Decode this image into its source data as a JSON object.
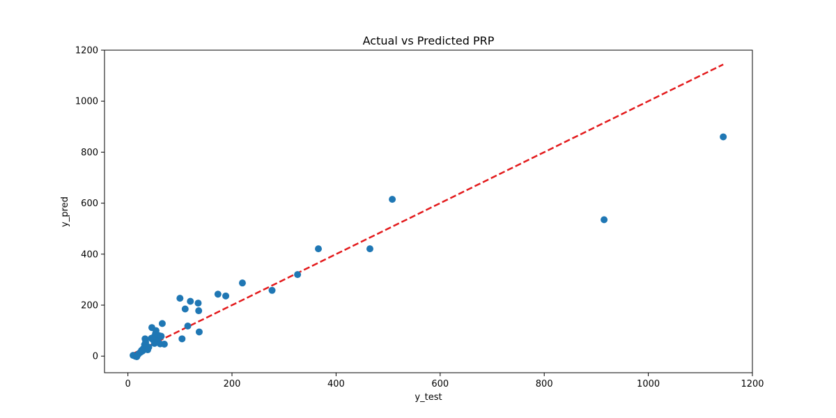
{
  "chart_data": {
    "type": "scatter",
    "title": "Actual vs Predicted PRP",
    "xlabel": "y_test",
    "ylabel": "y_pred",
    "xlim": [
      -45,
      1200
    ],
    "ylim": [
      -65,
      1200
    ],
    "xticks": [
      0,
      200,
      400,
      600,
      800,
      1000,
      1200
    ],
    "yticks": [
      0,
      200,
      400,
      600,
      800,
      1000,
      1200
    ],
    "grid": false,
    "series": [
      {
        "color": "#1f77b4",
        "points": [
          [
            10,
            3
          ],
          [
            14,
            0
          ],
          [
            17,
            -2
          ],
          [
            20,
            8
          ],
          [
            24,
            15
          ],
          [
            26,
            22
          ],
          [
            28,
            20
          ],
          [
            29,
            28
          ],
          [
            31,
            32
          ],
          [
            32,
            45
          ],
          [
            33,
            68
          ],
          [
            34,
            55
          ],
          [
            36,
            40
          ],
          [
            38,
            25
          ],
          [
            40,
            35
          ],
          [
            45,
            70
          ],
          [
            46,
            112
          ],
          [
            48,
            65
          ],
          [
            50,
            75
          ],
          [
            51,
            50
          ],
          [
            53,
            88
          ],
          [
            54,
            100
          ],
          [
            55,
            72
          ],
          [
            57,
            60
          ],
          [
            58,
            55
          ],
          [
            60,
            80
          ],
          [
            62,
            48
          ],
          [
            64,
            78
          ],
          [
            66,
            128
          ],
          [
            70,
            47
          ],
          [
            100,
            227
          ],
          [
            104,
            68
          ],
          [
            110,
            185
          ],
          [
            115,
            118
          ],
          [
            120,
            215
          ],
          [
            135,
            208
          ],
          [
            136,
            178
          ],
          [
            137,
            95
          ],
          [
            173,
            243
          ],
          [
            188,
            236
          ],
          [
            220,
            287
          ],
          [
            277,
            258
          ],
          [
            326,
            320
          ],
          [
            366,
            421
          ],
          [
            465,
            421
          ],
          [
            508,
            615
          ],
          [
            915,
            535
          ],
          [
            1144,
            860
          ]
        ]
      }
    ],
    "reference_line": {
      "style": "dashed",
      "color": "#e31a1c",
      "x": [
        10,
        1144
      ],
      "y": [
        10,
        1144
      ]
    }
  }
}
